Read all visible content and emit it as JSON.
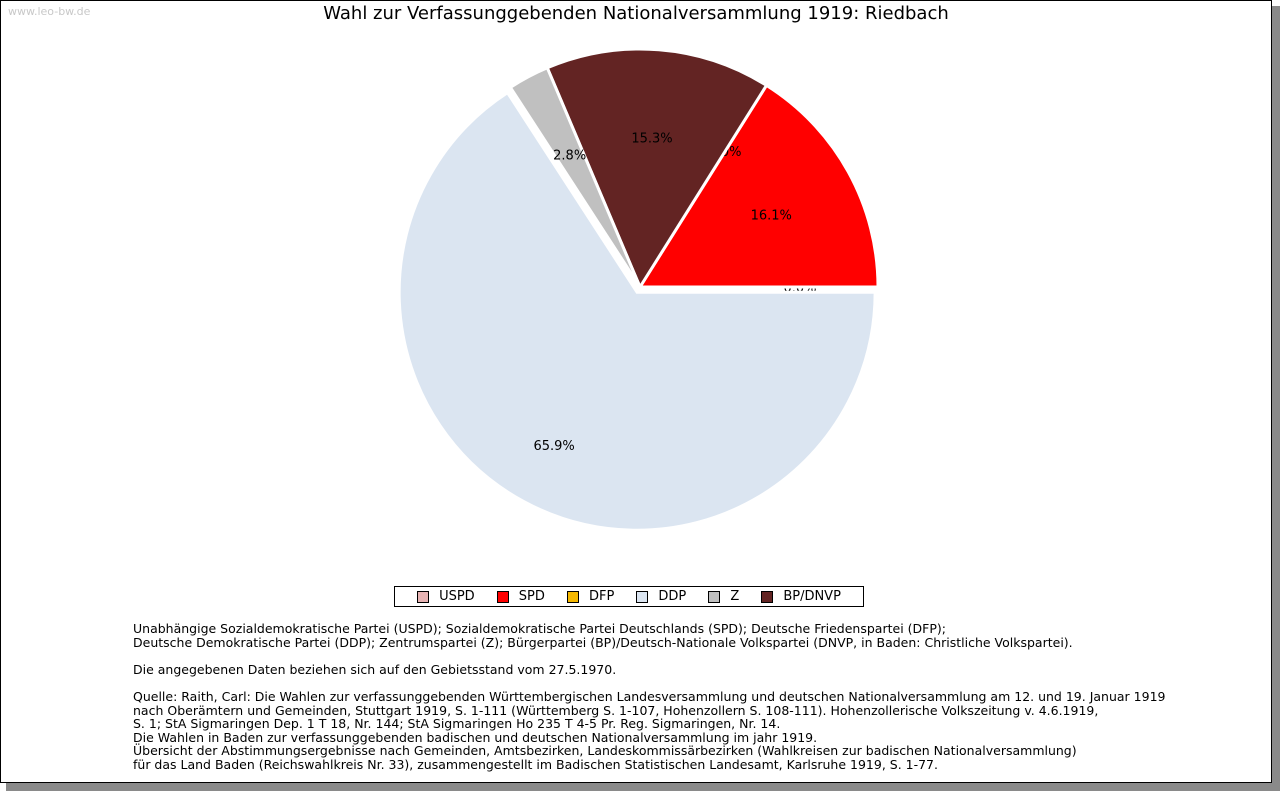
{
  "watermark": "www.leo-bw.de",
  "chart_data": {
    "type": "pie",
    "title": "Wahl zur Verfassunggebenden Nationalversammlung 1919: Riedbach",
    "series": [
      {
        "name": "USPD",
        "value": 0.0,
        "label": "0.0%",
        "color": "#e8b4b4"
      },
      {
        "name": "SPD",
        "value": 16.1,
        "label": "16.1%",
        "color": "#ff0000"
      },
      {
        "name": "DFP",
        "value": 0.0,
        "label": "0.0%",
        "color": "#f5b800"
      },
      {
        "name": "BP/DNVP",
        "value": 15.3,
        "label": "15.3%",
        "color": "#632423"
      },
      {
        "name": "Z",
        "value": 2.8,
        "label": "2.8%",
        "color": "#c0c0c0"
      },
      {
        "name": "DDP",
        "value": 65.9,
        "label": "65.9%",
        "color": "#dbe5f1"
      }
    ],
    "legend": [
      {
        "name": "USPD",
        "color": "#e8b4b4"
      },
      {
        "name": "SPD",
        "color": "#ff0000"
      },
      {
        "name": "DFP",
        "color": "#f5b800"
      },
      {
        "name": "DDP",
        "color": "#dbe5f1"
      },
      {
        "name": "Z",
        "color": "#c0c0c0"
      },
      {
        "name": "BP/DNVP",
        "color": "#632423"
      }
    ],
    "legend_position": "bottom-center"
  },
  "notes": {
    "parties_1": "Unabhängige Sozialdemokratische Partei (USPD); Sozialdemokratische Partei Deutschlands (SPD); Deutsche Friedenspartei (DFP);",
    "parties_2": "Deutsche Demokratische Partei (DDP); Zentrumspartei (Z); Bürgerpartei (BP)/Deutsch-Nationale Volkspartei (DNVP, in Baden: Christliche Volkspartei).",
    "territory": "Die angegebenen Daten beziehen sich auf den Gebietsstand vom 27.5.1970.",
    "source_1": "Quelle: Raith, Carl: Die Wahlen zur verfassunggebenden Württembergischen Landesversammlung und deutschen Nationalversammlung am 12. und 19. Januar 1919",
    "source_2": "nach Oberämtern und Gemeinden, Stuttgart 1919, S. 1-111 (Württemberg S. 1-107, Hohenzollern S. 108-111). Hohenzollerische Volkszeitung v. 4.6.1919,",
    "source_3": "S. 1; StA Sigmaringen Dep. 1 T 18, Nr. 144; StA Sigmaringen Ho 235 T 4-5 Pr. Reg. Sigmaringen, Nr. 14.",
    "source_4": "Die Wahlen in Baden zur verfassunggebenden badischen und deutschen Nationalversammlung im jahr 1919.",
    "source_5": "Übersicht der Abstimmungsergebnisse nach Gemeinden, Amtsbezirken, Landeskommissärbezirken (Wahlkreisen zur badischen Nationalversammlung)",
    "source_6": "für das Land Baden (Reichswahlkreis Nr. 33), zusammengestellt im Badischen Statistischen Landesamt, Karlsruhe 1919, S. 1-77."
  }
}
